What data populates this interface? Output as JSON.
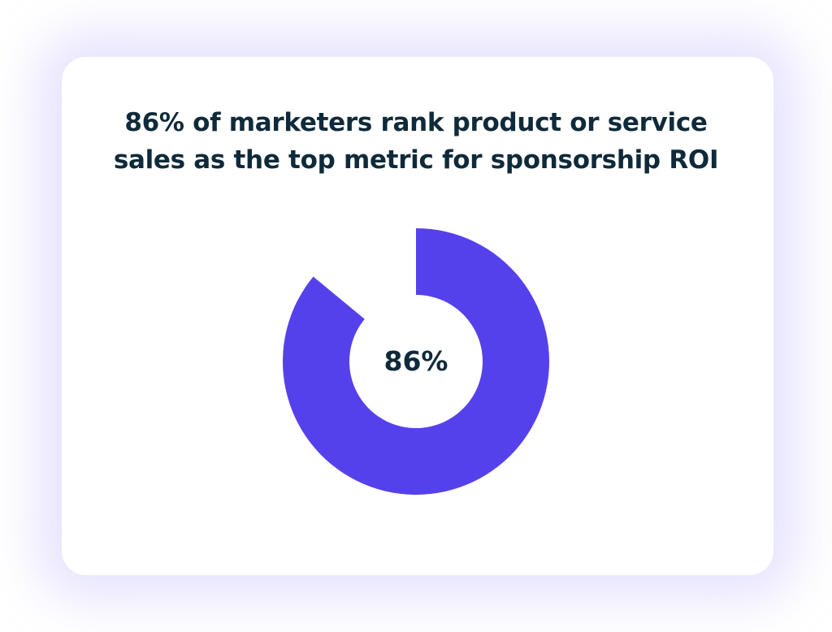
{
  "chart_data": {
    "type": "pie",
    "variant": "donut",
    "title_lines": [
      "86% of marketers rank product or service",
      "sales as the top metric for sponsorship ROI"
    ],
    "values": [
      86,
      14
    ],
    "center_label": "86%",
    "colors": {
      "filled": "#5541EC",
      "remaining": "#FFFFFF",
      "text": "#0F2A3A"
    }
  }
}
